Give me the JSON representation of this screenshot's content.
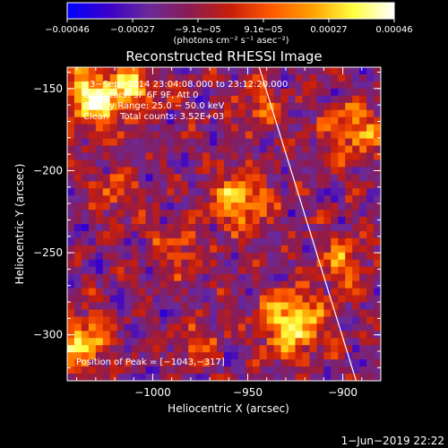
{
  "chart_data": {
    "type": "heatmap",
    "title": "Reconstructed RHESSI Image",
    "xlabel": "Heliocentric X (arcsec)",
    "ylabel": "Heliocentric Y (arcsec)",
    "xlim": [
      -1045,
      -880
    ],
    "ylim": [
      -328,
      -137
    ],
    "xticks": [
      {
        "value": -1000,
        "label": "−1000"
      },
      {
        "value": -950,
        "label": "−950"
      },
      {
        "value": -900,
        "label": "−900"
      }
    ],
    "yticks": [
      {
        "value": -150,
        "label": "−150"
      },
      {
        "value": -200,
        "label": "−200"
      },
      {
        "value": -250,
        "label": "−250"
      },
      {
        "value": -300,
        "label": "−300"
      }
    ],
    "colorbar": {
      "range": [
        -0.00046,
        0.00046
      ],
      "tick_labels": [
        "−0.00046",
        "−0.00027",
        "−9.1e−05",
        "9.1e−05",
        "0.00027",
        "0.00046"
      ],
      "unit_label": "(photons cm⁻² s⁻¹ asec⁻²)",
      "colors": [
        "#0000ff",
        "#3a00c8",
        "#6a2a9a",
        "#8b1b52",
        "#c81e0a",
        "#ff5a00",
        "#ffa000",
        "#ffff40",
        "#ffffff"
      ]
    },
    "info_lines": [
      "3−Sep−2014 23:04:08.000 to 23:12:20.000",
      "Detectors: 3F 6F 9F, Att 0",
      "Energy Range: 25.0 − 50.0 keV",
      "Clean    Total counts: 3.52E+03"
    ],
    "peak_label": "Position of Peak = [−1043,−317]",
    "peak": {
      "x": -1043,
      "y": -317
    },
    "limb_line": [
      {
        "x": -944,
        "y": -137
      },
      {
        "x": -893,
        "y": -328
      }
    ],
    "limb_color": "#ffffff"
  },
  "timestamp": "1−Jun−2019 22:22"
}
